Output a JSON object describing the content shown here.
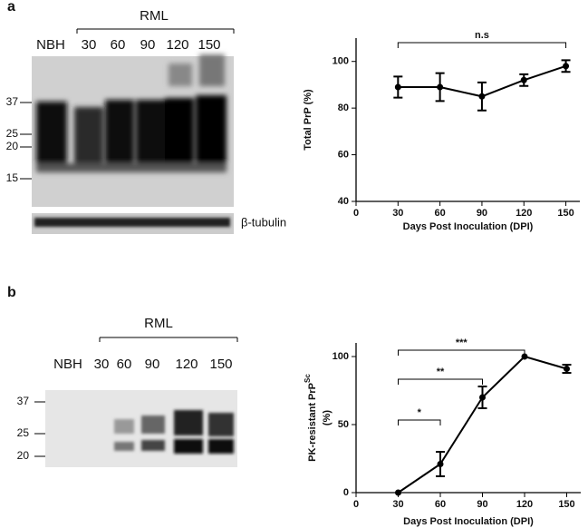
{
  "panel_labels": [
    "a",
    "b"
  ],
  "blots": [
    {
      "group_label": "RML",
      "lanes": [
        "NBH",
        "30",
        "60",
        "90",
        "120",
        "150"
      ],
      "markers": [
        "37",
        "25",
        "20",
        "15"
      ],
      "loading_control": "β-tubulin"
    },
    {
      "group_label": "RML",
      "lanes": [
        "NBH",
        "30",
        "60",
        "90",
        "120",
        "150"
      ],
      "markers": [
        "37",
        "25",
        "20"
      ]
    }
  ],
  "chart_data": [
    {
      "type": "line",
      "xlabel": "Days Post Inoculation (DPI)",
      "ylabel": "Total PrP (%)",
      "x": [
        30,
        60,
        90,
        120,
        150
      ],
      "values": [
        89,
        89,
        85,
        92,
        98
      ],
      "errors": [
        4.5,
        6,
        6,
        2.5,
        2.5
      ],
      "color": "#000000",
      "xlim": [
        0,
        160
      ],
      "ylim": [
        40,
        110
      ],
      "xticks": [
        0,
        30,
        60,
        90,
        120,
        150
      ],
      "yticks": [
        40,
        60,
        80,
        100
      ],
      "brackets": [
        {
          "from": 30,
          "to": 150,
          "label": "n.s"
        }
      ]
    },
    {
      "type": "line",
      "xlabel": "Days Post Inoculation (DPI)",
      "ylabel": "PK-resistant PrP",
      "ylabel_sup": "Sc",
      "ylabel_unit": "(%)",
      "x": [
        30,
        60,
        90,
        120,
        150
      ],
      "values": [
        0,
        21,
        70,
        100,
        91
      ],
      "errors": [
        0,
        9,
        8,
        0,
        3
      ],
      "color": "#000000",
      "xlim": [
        0,
        160
      ],
      "ylim": [
        0,
        110
      ],
      "xticks": [
        0,
        30,
        60,
        90,
        120,
        150
      ],
      "yticks": [
        0,
        50,
        100
      ],
      "brackets": [
        {
          "from": 30,
          "to": 60,
          "label": "*"
        },
        {
          "from": 30,
          "to": 90,
          "label": "**"
        },
        {
          "from": 30,
          "to": 120,
          "label": "***"
        }
      ]
    }
  ]
}
